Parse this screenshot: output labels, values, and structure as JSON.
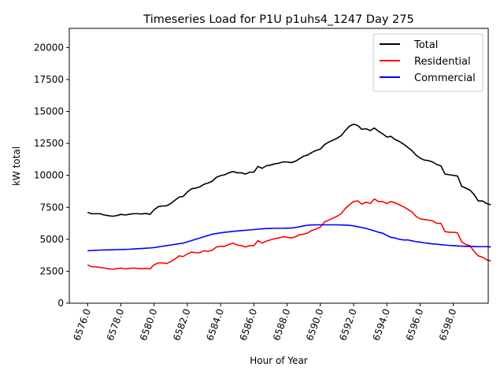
{
  "chart_data": {
    "type": "line",
    "title": "Timeseries Load for P1U p1uhs4_1247  Day 275",
    "xlabel": "Hour of Year",
    "ylabel": "kW total",
    "xlim": [
      6574.9,
      6600.1
    ],
    "ylim": [
      0,
      21500
    ],
    "xticks": [
      6576,
      6578,
      6580,
      6582,
      6584,
      6586,
      6588,
      6590,
      6592,
      6594,
      6596,
      6598
    ],
    "xtick_labels": [
      "6576.0",
      "6578.0",
      "6580.0",
      "6582.0",
      "6584.0",
      "6586.0",
      "6588.0",
      "6590.0",
      "6592.0",
      "6594.0",
      "6596.0",
      "6598.0"
    ],
    "yticks": [
      0,
      2500,
      5000,
      7500,
      10000,
      12500,
      15000,
      17500,
      20000
    ],
    "ytick_labels": [
      "0",
      "2500",
      "5000",
      "7500",
      "10000",
      "12500",
      "15000",
      "17500",
      "20000"
    ],
    "grid": false,
    "legend_position": "top-right",
    "x_start": 6576,
    "x_step": 0.25,
    "series": [
      {
        "name": "Total",
        "color": "#000000",
        "values": [
          7100,
          7000,
          7000,
          7000,
          6900,
          6850,
          6800,
          6850,
          6950,
          6900,
          6950,
          7000,
          7000,
          6980,
          7020,
          6950,
          7300,
          7550,
          7600,
          7620,
          7800,
          8050,
          8300,
          8350,
          8700,
          8950,
          9000,
          9100,
          9300,
          9400,
          9550,
          9850,
          9980,
          10050,
          10200,
          10300,
          10200,
          10200,
          10100,
          10250,
          10250,
          10700,
          10550,
          10750,
          10800,
          10900,
          10950,
          11050,
          11050,
          11000,
          11100,
          11300,
          11500,
          11600,
          11800,
          11950,
          12050,
          12400,
          12600,
          12750,
          12900,
          13100,
          13500,
          13850,
          14000,
          13900,
          13600,
          13650,
          13500,
          13700,
          13450,
          13250,
          13000,
          13050,
          12800,
          12650,
          12450,
          12200,
          11950,
          11600,
          11350,
          11200,
          11150,
          11050,
          10850,
          10750,
          10100,
          10050,
          10000,
          9950,
          9150,
          9000,
          8850,
          8500,
          8000,
          8000,
          7800,
          7700
        ]
      },
      {
        "name": "Residential",
        "color": "#ff0000",
        "values": [
          3000,
          2850,
          2850,
          2800,
          2750,
          2700,
          2650,
          2700,
          2750,
          2680,
          2720,
          2750,
          2720,
          2700,
          2720,
          2680,
          3000,
          3150,
          3150,
          3100,
          3250,
          3450,
          3700,
          3650,
          3850,
          4000,
          3950,
          3950,
          4100,
          4050,
          4150,
          4400,
          4450,
          4450,
          4600,
          4700,
          4550,
          4500,
          4400,
          4500,
          4500,
          4900,
          4700,
          4850,
          4950,
          5050,
          5100,
          5200,
          5150,
          5100,
          5200,
          5350,
          5400,
          5500,
          5700,
          5800,
          5950,
          6350,
          6500,
          6650,
          6800,
          7000,
          7400,
          7700,
          7950,
          8000,
          7750,
          7900,
          7800,
          8150,
          7950,
          7950,
          7800,
          7950,
          7850,
          7700,
          7550,
          7350,
          7150,
          6800,
          6600,
          6550,
          6500,
          6450,
          6250,
          6250,
          5600,
          5550,
          5550,
          5500,
          4800,
          4600,
          4500,
          4050,
          3700,
          3600,
          3400,
          3300
        ]
      },
      {
        "name": "Commercial",
        "color": "#0000ff",
        "values": [
          4100,
          4120,
          4140,
          4150,
          4160,
          4170,
          4180,
          4190,
          4200,
          4210,
          4220,
          4240,
          4260,
          4280,
          4300,
          4320,
          4350,
          4400,
          4450,
          4500,
          4550,
          4600,
          4650,
          4700,
          4800,
          4900,
          5000,
          5100,
          5200,
          5300,
          5400,
          5450,
          5500,
          5550,
          5580,
          5620,
          5650,
          5680,
          5700,
          5730,
          5760,
          5790,
          5820,
          5840,
          5850,
          5860,
          5860,
          5860,
          5870,
          5880,
          5920,
          5980,
          6050,
          6100,
          6120,
          6130,
          6130,
          6130,
          6130,
          6130,
          6130,
          6120,
          6110,
          6090,
          6050,
          5980,
          5920,
          5850,
          5750,
          5650,
          5550,
          5480,
          5300,
          5150,
          5100,
          5000,
          4950,
          4950,
          4880,
          4820,
          4780,
          4720,
          4680,
          4640,
          4620,
          4580,
          4550,
          4520,
          4500,
          4480,
          4460,
          4450,
          4440,
          4430,
          4420,
          4420,
          4420,
          4400
        ]
      }
    ]
  }
}
